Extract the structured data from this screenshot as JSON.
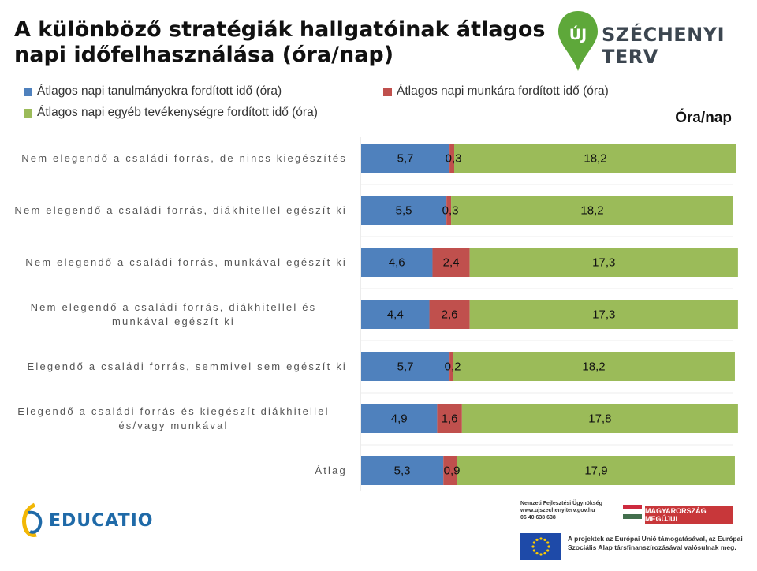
{
  "title": "A különböző stratégiák hallgatóinak átlagos napi időfelhasználása (óra/nap)",
  "unit_label": "Óra/nap",
  "colors": {
    "study": "#4f81bd",
    "work": "#c0504d",
    "other": "#9bbb59"
  },
  "logos": {
    "szechenyi_letter": "ÚJ",
    "szechenyi_text": "SZÉCHENYI TERV",
    "educatio": "EDUCATIO",
    "nfu_text": [
      "Nemzeti Fejlesztési Ügynökség",
      "www.ujszechenyiterv.gov.hu",
      "06 40 638 638"
    ],
    "mo_banner": "MAGYARORSZÁG MEGÚJUL",
    "eu_text": "A projektek az Európai Unió támogatásával, az Európai Szociális Alap társfinanszírozásával valósulnak meg."
  },
  "chart_data": {
    "type": "bar",
    "stacked": true,
    "orientation": "horizontal",
    "title": "A különböző stratégiák hallgatóinak átlagos napi időfelhasználása (óra/nap)",
    "unit": "Óra/nap",
    "xlim": [
      0,
      24
    ],
    "categories": [
      "Nem elegendő a családi forrás, de nincs kiegészítés",
      "Nem elegendő a családi forrás, diákhitellel egészít ki",
      "Nem elegendő a családi forrás, munkával egészít ki",
      "Nem elegendő a családi forrás, diákhitellel és munkával egészít ki",
      "Elegendő a családi forrás, semmivel sem egészít ki",
      "Elegendő a családi forrás és kiegészít diákhitellel és/vagy munkával",
      "Átlag"
    ],
    "category_lines": [
      [
        "Nem elegendő a családi forrás, de nincs kiegészítés"
      ],
      [
        "Nem elegendő a családi forrás, diákhitellel egészít ki"
      ],
      [
        "Nem elegendő a családi forrás, munkával egészít ki"
      ],
      [
        "Nem elegendő a családi forrás, diákhitellel és",
        "munkával egészít ki"
      ],
      [
        "Elegendő a családi forrás, semmivel sem egészít ki"
      ],
      [
        "Elegendő a családi forrás és kiegészít diákhitellel",
        "és/vagy munkával"
      ],
      [
        "Átlag"
      ]
    ],
    "series": [
      {
        "name": "Átlagos napi tanulmányokra fordított idő (óra)",
        "values": [
          5.7,
          5.5,
          4.6,
          4.4,
          5.7,
          4.9,
          5.3
        ],
        "labels": [
          "5,7",
          "5,5",
          "4,6",
          "4,4",
          "5,7",
          "4,9",
          "5,3"
        ]
      },
      {
        "name": "Átlagos napi munkára fordított idő (óra)",
        "values": [
          0.3,
          0.3,
          2.4,
          2.6,
          0.2,
          1.6,
          0.9
        ],
        "labels": [
          "0,3",
          "0,3",
          "2,4",
          "2,6",
          "0,2",
          "1,6",
          "0,9"
        ]
      },
      {
        "name": "Átlagos napi egyéb tevékenységre fordított idő (óra)",
        "values": [
          18.2,
          18.2,
          17.3,
          17.3,
          18.2,
          17.8,
          17.9
        ],
        "labels": [
          "18,2",
          "18,2",
          "17,3",
          "17,3",
          "18,2",
          "17,8",
          "17,9"
        ]
      }
    ]
  }
}
